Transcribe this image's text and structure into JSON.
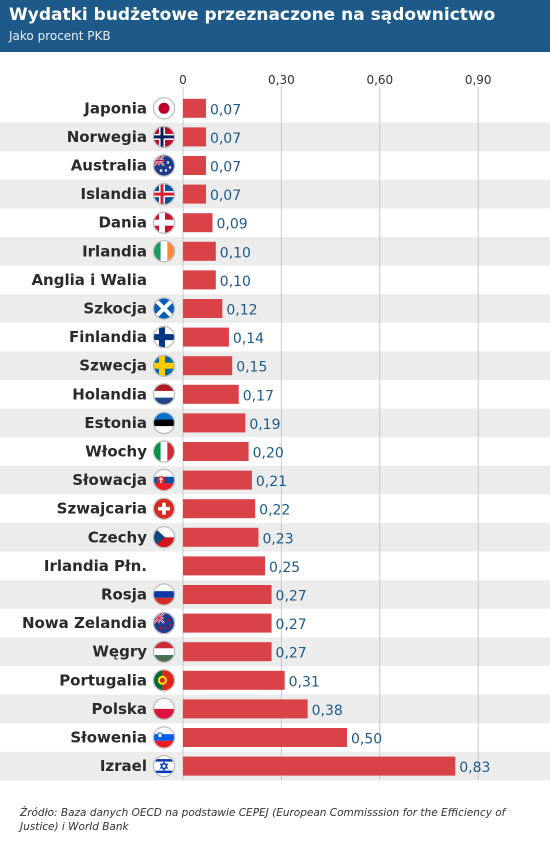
{
  "title": "Wydatki budżetowe przeznaczone na sądownictwo",
  "subtitle": "Jako procent PKB",
  "source": "Źródło: Baza danych OECD na podstawie CEPEJ (European Commisssion for the Efficiency of Justice) i World Bank",
  "colors": {
    "header": "#1d5a8a",
    "bar": "#d94347",
    "value_text": "#1d5a8a",
    "stripe": "#ececec",
    "gridline": "#c8c8c8"
  },
  "chart_data": {
    "type": "bar",
    "orientation": "horizontal",
    "categories": [
      "Japonia",
      "Norwegia",
      "Australia",
      "Islandia",
      "Dania",
      "Irlandia",
      "Anglia i Walia",
      "Szkocja",
      "Finlandia",
      "Szwecja",
      "Holandia",
      "Estonia",
      "Włochy",
      "Słowacja",
      "Szwajcaria",
      "Czechy",
      "Irlandia Płn.",
      "Rosja",
      "Nowa Zelandia",
      "Węgry",
      "Portugalia",
      "Polska",
      "Słowenia",
      "Izrael"
    ],
    "values": [
      0.07,
      0.07,
      0.07,
      0.07,
      0.09,
      0.1,
      0.1,
      0.12,
      0.14,
      0.15,
      0.17,
      0.19,
      0.2,
      0.21,
      0.22,
      0.23,
      0.25,
      0.27,
      0.27,
      0.27,
      0.31,
      0.38,
      0.5,
      0.83
    ],
    "value_labels": [
      "0,07",
      "0,07",
      "0,07",
      "0,07",
      "0,09",
      "0,10",
      "0,10",
      "0,12",
      "0,14",
      "0,15",
      "0,17",
      "0,19",
      "0,20",
      "0,21",
      "0,22",
      "0,23",
      "0,25",
      "0,27",
      "0,27",
      "0,27",
      "0,31",
      "0,38",
      "0,50",
      "0,83"
    ],
    "flags": [
      "japan-flag",
      "norway-flag",
      "australia-flag",
      "iceland-flag",
      "denmark-flag",
      "ireland-flag",
      "",
      "scotland-flag",
      "finland-flag",
      "sweden-flag",
      "netherlands-flag",
      "estonia-flag",
      "italy-flag",
      "slovakia-flag",
      "switzerland-flag",
      "czechia-flag",
      "",
      "russia-flag",
      "new-zealand-flag",
      "hungary-flag",
      "portugal-flag",
      "poland-flag",
      "slovenia-flag",
      "israel-flag"
    ],
    "xticks": [
      0,
      0.3,
      0.6,
      0.9
    ],
    "xtick_labels": [
      "0",
      "0,30",
      "0,60",
      "0,90"
    ],
    "xlim": [
      0,
      0.98
    ],
    "grid": true,
    "striped_rows": true
  }
}
